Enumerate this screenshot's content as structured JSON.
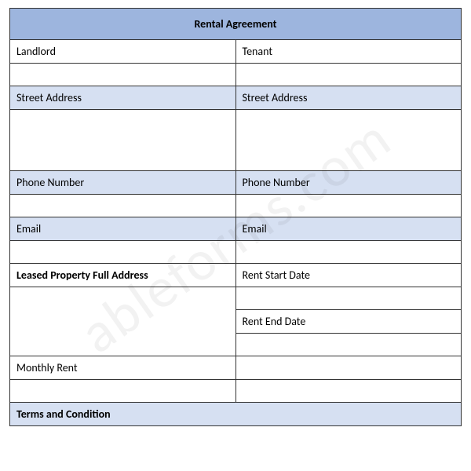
{
  "title": "Rental Agreement",
  "watermark": "ableforms.com",
  "rows": [
    {
      "type": "party",
      "left": "Landlord",
      "right": "Tenant"
    },
    {
      "type": "blank"
    },
    {
      "type": "header",
      "left": "Street Address",
      "right": "Street Address"
    },
    {
      "type": "tall-blank"
    },
    {
      "type": "header",
      "left": "Phone Number",
      "right": "Phone Number"
    },
    {
      "type": "blank"
    },
    {
      "type": "header",
      "left": "Email",
      "right": "Email"
    },
    {
      "type": "blank"
    }
  ],
  "leased_address_label": "Leased Property Full Address",
  "rent_start_label": "Rent Start Date",
  "rent_end_label": "Rent End Date",
  "monthly_rent_label": "Monthly Rent",
  "terms_label": "Terms and Condition",
  "colors": {
    "title_bg": "#9db5de",
    "header_bg": "#d6e0f2",
    "border": "#333333",
    "text": "#000000"
  }
}
